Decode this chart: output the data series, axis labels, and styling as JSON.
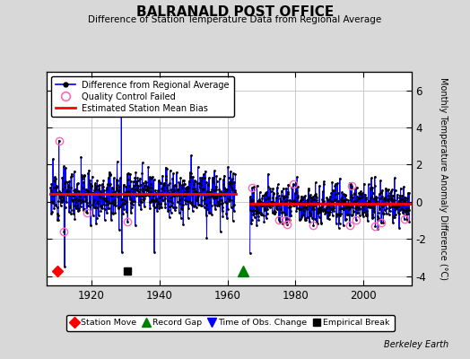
{
  "title": "BALRANALD POST OFFICE",
  "subtitle": "Difference of Station Temperature Data from Regional Average",
  "ylabel": "Monthly Temperature Anomaly Difference (°C)",
  "background_color": "#d8d8d8",
  "plot_bg_color": "#ffffff",
  "grid_color": "#c8c8c8",
  "ylim": [
    -4.5,
    7.0
  ],
  "yticks": [
    -4,
    -2,
    0,
    2,
    4,
    6
  ],
  "xmin": 1907,
  "xmax": 2014,
  "xticks": [
    1920,
    1940,
    1960,
    1980,
    2000
  ],
  "gap_start": 1962.5,
  "gap_end": 1966.5,
  "segment1_start": 1908,
  "segment1_end": 1962.4,
  "segment2_start": 1966.6,
  "segment2_end": 2013.5,
  "bias1": 0.45,
  "bias2": -0.1,
  "seed1": 12,
  "seed2": 77,
  "berkeley_earth_text": "Berkeley Earth",
  "station_move_x": 1910.0,
  "empirical_break_x": 1930.5,
  "record_gap_x": 1964.5,
  "event_y": -3.75,
  "spike1_x": 1910.5,
  "spike1_y": 3.3,
  "spike2_x": 1912.2,
  "spike2_y": -3.5,
  "spike3_x": 1928.8,
  "spike3_y": 4.9,
  "spike4_x": 1929.0,
  "spike4_y": -2.7,
  "spike5_x": 1938.5,
  "spike5_y": -2.7,
  "spike6_x": 1963.2,
  "spike6_y": -2.75,
  "noise_std1": 0.65,
  "noise_std2": 0.55,
  "qc_seed": 55,
  "n_qc1": 4,
  "n_qc2": 12
}
